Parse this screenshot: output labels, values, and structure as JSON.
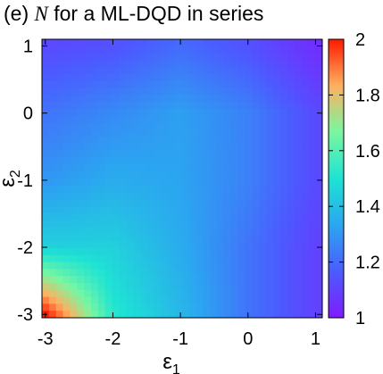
{
  "chart_data": {
    "type": "heatmap",
    "title": {
      "panel": "(e)",
      "symbol": "N",
      "rest": "for a ML-DQD in series"
    },
    "xlabel": {
      "base": "ε",
      "sub": "1"
    },
    "ylabel": {
      "base": "ε",
      "sub": "2"
    },
    "xlim": [
      -3.05,
      1.1
    ],
    "ylim": [
      -3.05,
      1.1
    ],
    "xticks": [
      -3,
      -2,
      -1,
      0,
      1
    ],
    "yticks": [
      -3,
      -2,
      -1,
      0,
      1
    ],
    "xtick_labels": [
      "-3",
      "-2",
      "-1",
      "0",
      "1"
    ],
    "ytick_labels": [
      "-3",
      "-2",
      "-1",
      "0",
      "1"
    ],
    "colorbar": {
      "range": [
        1,
        2
      ],
      "ticks": [
        1,
        1.2,
        1.4,
        1.6,
        1.8,
        2
      ],
      "tick_labels": [
        "1",
        "1.2",
        "1.4",
        "1.6",
        "1.8",
        "2"
      ],
      "colors": [
        "#7f1bff",
        "#4b5cff",
        "#2ba6f0",
        "#1ee3d3",
        "#79f7a0",
        "#ffb060",
        "#ff1a00"
      ]
    },
    "z_samples": {
      "description_rows": "N sampled on a 5x5 grid; rows from eps2 = 1 (top) to eps2 = -3 (bottom), columns eps1 = -3..1",
      "eps1": [
        -3,
        -2,
        -1,
        0,
        1
      ],
      "eps2": [
        1,
        0,
        -1,
        -2,
        -3
      ],
      "values": [
        [
          1.12,
          1.14,
          1.2,
          1.14,
          1.05
        ],
        [
          1.22,
          1.27,
          1.32,
          1.25,
          1.12
        ],
        [
          1.3,
          1.35,
          1.33,
          1.25,
          1.12
        ],
        [
          1.45,
          1.45,
          1.35,
          1.22,
          1.1
        ],
        [
          2.0,
          1.52,
          1.38,
          1.22,
          1.1
        ]
      ]
    }
  }
}
